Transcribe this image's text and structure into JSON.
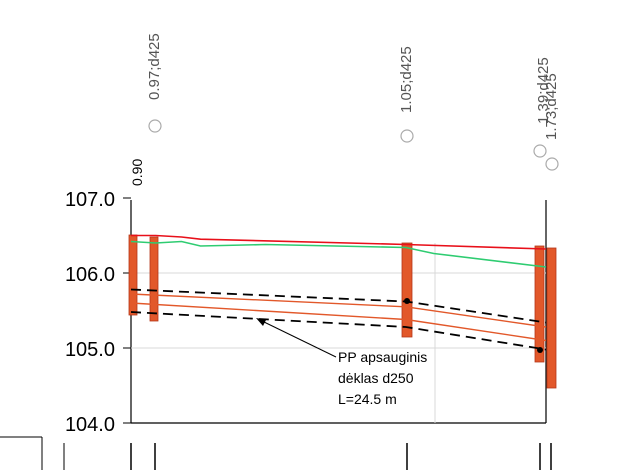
{
  "profile": {
    "y_axis": {
      "min": 104.0,
      "max": 107.0,
      "ticks": [
        "104.0",
        "105.0",
        "106.0",
        "107.0"
      ]
    },
    "well_labels": [
      {
        "text": "0.97;d425",
        "station": 0.12
      },
      {
        "text": "1.05;d425",
        "station": 24.5
      },
      {
        "text": "1.39;d425",
        "station": 36.4
      },
      {
        "text": "1.73;d425",
        "station": 37.2
      }
    ],
    "height_label": "0.90",
    "annotation": {
      "line1": "PP apsauginis",
      "line2": "dėklas d250",
      "line3": "L=24.5 m"
    },
    "colors": {
      "red": "#e8101a",
      "green": "#2ecc71",
      "orange": "#e2582a",
      "black": "#000000",
      "grid": "#d8d8d8"
    }
  },
  "chart_data": {
    "type": "line",
    "title": "",
    "xlabel": "",
    "ylabel": "",
    "ylim": [
      104.0,
      107.0
    ],
    "series": [
      {
        "x": [
          0,
          2.2,
          4.5,
          6.2,
          24.5,
          37.0
        ],
        "y": [
          106.5,
          106.5,
          106.48,
          106.45,
          106.38,
          106.32
        ]
      },
      {
        "x": [
          0,
          2.2,
          4.5,
          6.2,
          12.0,
          24.5,
          27.0,
          37.0
        ],
        "y": [
          106.42,
          106.4,
          106.42,
          106.36,
          106.38,
          106.34,
          106.26,
          106.08
        ]
      },
      {
        "x": [
          0,
          24.5,
          37.0
        ],
        "y": [
          105.72,
          105.55,
          105.28
        ]
      },
      {
        "x": [
          0,
          24.5,
          37.0
        ],
        "y": [
          105.6,
          105.38,
          105.1
        ]
      },
      {
        "x": [
          0,
          24.5,
          37.0
        ],
        "y": [
          105.78,
          105.62,
          105.34
        ]
      },
      {
        "x": [
          0,
          24.5,
          37.0
        ],
        "y": [
          105.48,
          105.28,
          104.98
        ]
      }
    ]
  }
}
